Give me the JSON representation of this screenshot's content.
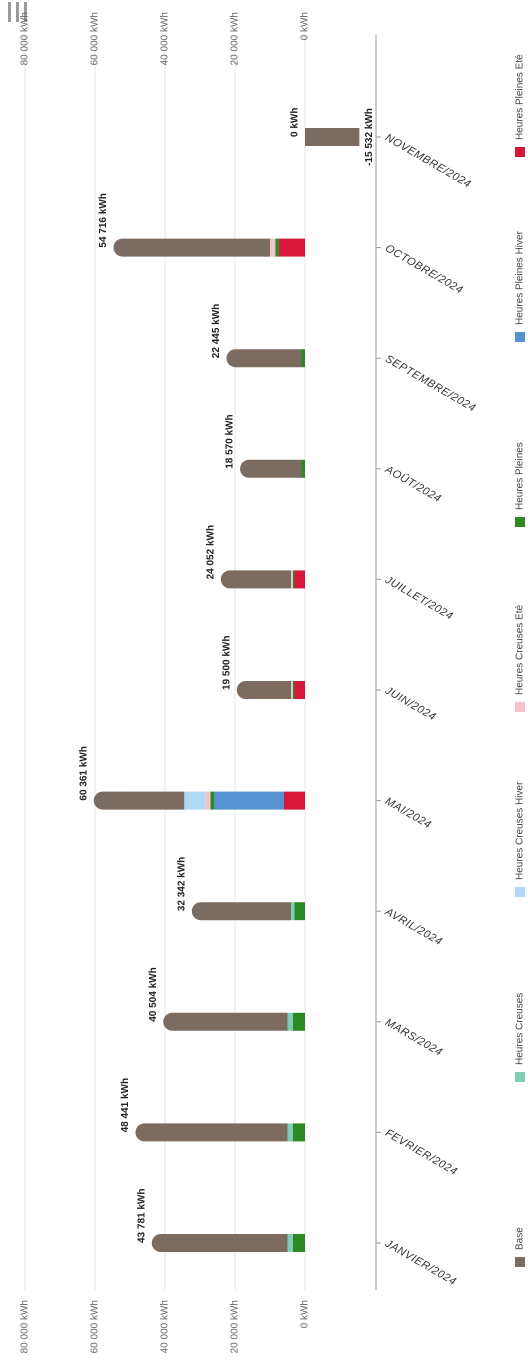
{
  "menu_icon": "hamburger-menu-icon",
  "chart_data": {
    "type": "bar",
    "orientation": "horizontal-stacked",
    "unit": "kWh",
    "ylim": [
      0,
      80000
    ],
    "grid": true,
    "legend_placement": "bottom",
    "axis_tick_labels": [
      "80 000 kWh",
      "60 000 kWh",
      "40 000 kWh",
      "20 000 kWh",
      "0 kWh"
    ],
    "categories": [
      "JANVIER/2024",
      "FEVRIER/2024",
      "MARS/2024",
      "AVRIL/2024",
      "MAI/2024",
      "JUIN/2024",
      "JUILLET/2024",
      "AOÛT/2024",
      "SEPTEMBRE/2024",
      "OCTOBRE/2024",
      "NOVEMBRE/2024"
    ],
    "total_labels": [
      "43 781 kWh",
      "48 441 kWh",
      "40 504 kWh",
      "32 342 kWh",
      "60 361 kWh",
      "19 500 kWh",
      "24 052 kWh",
      "18 570 kWh",
      "22 445 kWh",
      "54 716 kWh",
      "0 kWh"
    ],
    "negative_value": {
      "category": "NOVEMBRE/2024",
      "value": -15532,
      "label": "-15 532 kWh"
    },
    "series": [
      {
        "name": "Heures Pleines Eté",
        "color": "#d6173a",
        "values": [
          0,
          0,
          0,
          0,
          6000,
          3000,
          3000,
          0,
          0,
          7500,
          0
        ]
      },
      {
        "name": "Heures Pleines Hiver",
        "color": "#5592cf",
        "values": [
          0,
          0,
          0,
          0,
          20000,
          0,
          0,
          0,
          0,
          0,
          0
        ]
      },
      {
        "name": "Heures Pleines",
        "color": "#2d8a22",
        "values": [
          3500,
          3500,
          3500,
          3000,
          1000,
          500,
          500,
          1000,
          1000,
          1000,
          0
        ]
      },
      {
        "name": "Heures Creuses Eté",
        "color": "#f4c2cb",
        "values": [
          0,
          0,
          0,
          0,
          1500,
          500,
          500,
          0,
          0,
          1500,
          0
        ]
      },
      {
        "name": "Heures Creuses Hiver",
        "color": "#b0d9f5",
        "values": [
          0,
          0,
          0,
          0,
          6000,
          0,
          0,
          0,
          0,
          0,
          0
        ]
      },
      {
        "name": "Heures Creuses",
        "color": "#7ecdb4",
        "values": [
          1500,
          1500,
          1500,
          1000,
          0,
          0,
          0,
          0,
          0,
          0,
          0
        ]
      },
      {
        "name": "Base",
        "color": "#7b6b61",
        "values": [
          38781,
          43441,
          35504,
          28342,
          25861,
          15500,
          20052,
          17570,
          21445,
          44716,
          0
        ]
      }
    ]
  }
}
